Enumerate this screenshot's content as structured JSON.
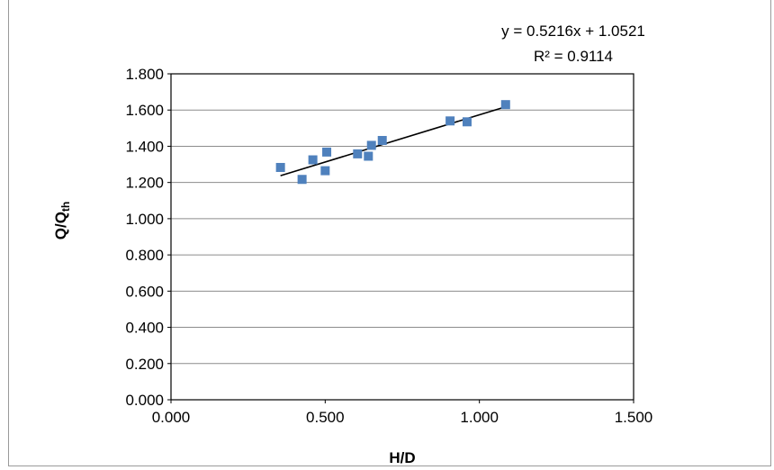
{
  "chart_data": {
    "type": "scatter",
    "xlabel": "H/D",
    "ylabel_main": "Q/Q",
    "ylabel_sub": "th",
    "xlim": [
      0,
      1.5
    ],
    "ylim": [
      0,
      1.8
    ],
    "xticks": [
      "0.000",
      "0.500",
      "1.000",
      "1.500"
    ],
    "xtick_values": [
      0,
      0.5,
      1.0,
      1.5
    ],
    "yticks": [
      "0.000",
      "0.200",
      "0.400",
      "0.600",
      "0.800",
      "1.000",
      "1.200",
      "1.400",
      "1.600",
      "1.800"
    ],
    "ytick_values": [
      0,
      0.2,
      0.4,
      0.6,
      0.8,
      1.0,
      1.2,
      1.4,
      1.6,
      1.8
    ],
    "grid": "horizontal",
    "marker_color": "#4f81bd",
    "points": [
      {
        "x": 0.355,
        "y": 1.283
      },
      {
        "x": 0.425,
        "y": 1.217
      },
      {
        "x": 0.46,
        "y": 1.325
      },
      {
        "x": 0.5,
        "y": 1.265
      },
      {
        "x": 0.505,
        "y": 1.368
      },
      {
        "x": 0.605,
        "y": 1.358
      },
      {
        "x": 0.64,
        "y": 1.345
      },
      {
        "x": 0.65,
        "y": 1.405
      },
      {
        "x": 0.685,
        "y": 1.432
      },
      {
        "x": 0.905,
        "y": 1.54
      },
      {
        "x": 0.96,
        "y": 1.535
      },
      {
        "x": 1.085,
        "y": 1.63
      }
    ],
    "trendline": {
      "slope": 0.5216,
      "intercept": 1.0521,
      "x_range": [
        0.355,
        1.085
      ],
      "equation": "y = 0.5216x + 1.0521",
      "r_squared": "R² = 0.9114"
    }
  }
}
